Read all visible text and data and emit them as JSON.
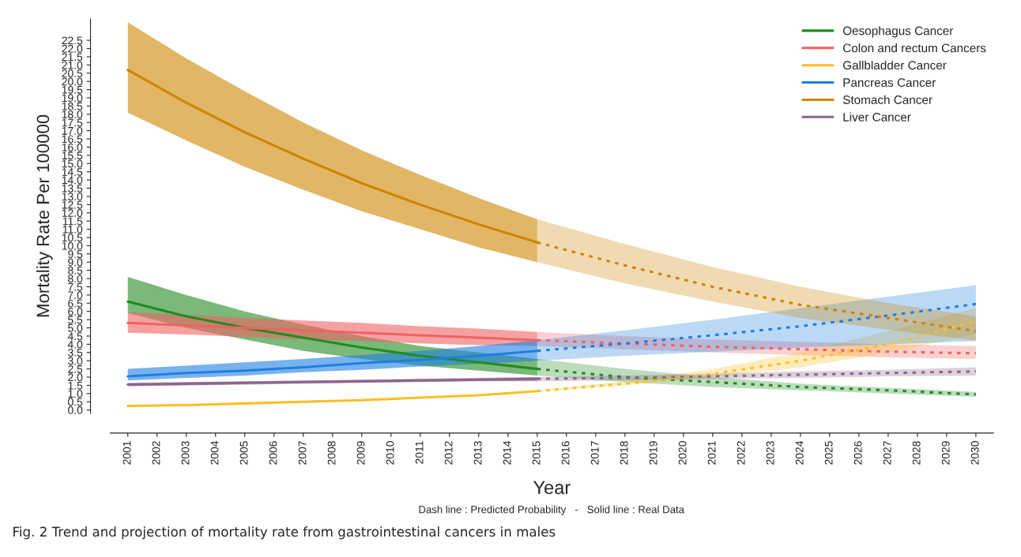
{
  "chart_data": {
    "type": "line",
    "xlabel": "Year",
    "ylabel": "Mortality Rate Per 100000",
    "legend": "top right",
    "annotations": [
      "Dash line : Predicted Probability   -   Solid line : Real Data",
      "Fig. 2 Trend and projection of mortality rate from gastrointestinal cancers in males"
    ],
    "xlim": [
      2000.4,
      2030.6
    ],
    "xticks": [
      2001,
      2002,
      2003,
      2004,
      2005,
      2006,
      2007,
      2008,
      2009,
      2010,
      2011,
      2012,
      2013,
      2014,
      2015,
      2016,
      2017,
      2018,
      2019,
      2020,
      2021,
      2022,
      2023,
      2024,
      2025,
      2026,
      2027,
      2028,
      2029,
      2030
    ],
    "ylim": [
      -0.2,
      23.8
    ],
    "yticks": [
      {
        "value": 0,
        "label": "0.0"
      },
      0.5,
      {
        "value": 1,
        "label": "1.0"
      },
      1.5,
      {
        "value": 2,
        "label": "2.0"
      },
      2.5,
      {
        "value": 3,
        "label": "3.0"
      },
      3.5,
      {
        "value": 4,
        "label": "4.0"
      },
      4.5,
      {
        "value": 5,
        "label": "5.0"
      },
      5.5,
      {
        "value": 6,
        "label": "6.0"
      },
      6.5,
      {
        "value": 7,
        "label": "7.0"
      },
      7.5,
      {
        "value": 8,
        "label": "8.0"
      },
      8.5,
      {
        "value": 9,
        "label": "9.0"
      },
      9.5,
      {
        "value": 10,
        "label": "10.0"
      },
      10.5,
      {
        "value": 11,
        "label": "11.0"
      },
      11.5,
      {
        "value": 12,
        "label": "12.0"
      },
      12.5,
      {
        "value": 13,
        "label": "13.0"
      },
      13.5,
      {
        "value": 14,
        "label": "14.0"
      },
      14.5,
      {
        "value": 15,
        "label": "15.0"
      },
      15.5,
      {
        "value": 16,
        "label": "16.0"
      },
      16.5,
      {
        "value": 17,
        "label": "17.0"
      },
      17.5,
      {
        "value": 18,
        "label": "18.0"
      },
      18.5,
      {
        "value": 19,
        "label": "19.0"
      },
      19.5,
      {
        "value": 20,
        "label": "20.0"
      },
      20.5,
      {
        "value": 21,
        "label": "21.0"
      },
      21.5,
      {
        "value": 22,
        "label": "22.0"
      },
      22.5
    ],
    "series": [
      {
        "name": "Oesophagus Cancer",
        "color": "#228b22",
        "line_style": "solid",
        "x": [
          2001,
          2003,
          2005,
          2007,
          2009,
          2011,
          2013,
          2015
        ],
        "values": [
          6.6,
          5.7,
          5.0,
          4.4,
          3.8,
          3.3,
          2.9,
          2.5
        ],
        "lower": [
          5.9,
          5.0,
          4.3,
          3.6,
          3.1,
          2.7,
          2.4,
          2.1
        ],
        "upper": [
          8.1,
          7.0,
          6.0,
          5.2,
          4.5,
          3.9,
          3.5,
          3.1
        ]
      },
      {
        "name": "Colon and rectum Cancers",
        "color": "#ee6363",
        "line_style": "solid",
        "x": [
          2001,
          2003,
          2005,
          2007,
          2009,
          2011,
          2013,
          2015
        ],
        "values": [
          5.3,
          5.15,
          5.0,
          4.85,
          4.7,
          4.55,
          4.4,
          4.25
        ],
        "lower": [
          4.7,
          4.6,
          4.45,
          4.3,
          4.2,
          4.05,
          3.95,
          3.9
        ],
        "upper": [
          5.95,
          5.8,
          5.6,
          5.45,
          5.3,
          5.1,
          4.95,
          4.75
        ]
      },
      {
        "name": "Gallbladder Cancer",
        "color": "#fbbf24",
        "line_style": "solid",
        "x": [
          2001,
          2003,
          2005,
          2007,
          2009,
          2011,
          2013,
          2015
        ],
        "values": [
          0.25,
          0.3,
          0.4,
          0.5,
          0.6,
          0.75,
          0.9,
          1.15
        ],
        "lower": [
          0.2,
          0.25,
          0.35,
          0.45,
          0.55,
          0.7,
          0.85,
          1.1
        ],
        "upper": [
          0.3,
          0.35,
          0.45,
          0.55,
          0.65,
          0.8,
          0.95,
          1.2
        ]
      },
      {
        "name": "Pancreas Cancer",
        "color": "#1e7fe0",
        "line_style": "solid",
        "x": [
          2001,
          2003,
          2005,
          2007,
          2009,
          2011,
          2013,
          2015
        ],
        "values": [
          2.05,
          2.25,
          2.4,
          2.6,
          2.85,
          3.05,
          3.3,
          3.6
        ],
        "lower": [
          1.8,
          1.95,
          2.1,
          2.3,
          2.45,
          2.65,
          2.8,
          3.0
        ],
        "upper": [
          2.5,
          2.7,
          2.9,
          3.1,
          3.35,
          3.6,
          3.9,
          4.25
        ]
      },
      {
        "name": "Stomach Cancer",
        "color": "#cd8500",
        "line_style": "solid",
        "x": [
          2001,
          2003,
          2005,
          2007,
          2009,
          2011,
          2013,
          2015
        ],
        "values": [
          20.7,
          18.7,
          16.9,
          15.3,
          13.8,
          12.5,
          11.3,
          10.2
        ],
        "lower": [
          18.1,
          16.4,
          14.8,
          13.4,
          12.1,
          11.0,
          9.9,
          9.0
        ],
        "upper": [
          23.6,
          21.4,
          19.4,
          17.5,
          15.8,
          14.3,
          12.9,
          11.6
        ]
      },
      {
        "name": "Liver Cancer",
        "color": "#8b668b",
        "line_style": "solid",
        "x": [
          2001,
          2003,
          2005,
          2007,
          2009,
          2011,
          2013,
          2015
        ],
        "values": [
          1.55,
          1.6,
          1.65,
          1.7,
          1.75,
          1.8,
          1.85,
          1.9
        ],
        "lower": [
          1.45,
          1.5,
          1.55,
          1.6,
          1.65,
          1.7,
          1.75,
          1.75
        ],
        "upper": [
          1.65,
          1.7,
          1.75,
          1.8,
          1.85,
          1.9,
          1.95,
          2.0
        ]
      },
      {
        "color": "#228b22",
        "line_style": "dashed",
        "x": [
          2015,
          2018,
          2021,
          2024,
          2027,
          2030
        ],
        "values": [
          2.5,
          2.0,
          1.7,
          1.4,
          1.2,
          0.95
        ],
        "lower": [
          2.1,
          1.7,
          1.4,
          1.2,
          1.0,
          0.8
        ],
        "upper": [
          3.1,
          2.5,
          2.0,
          1.6,
          1.35,
          1.1
        ]
      },
      {
        "color": "#ee6363",
        "line_style": "dashed",
        "x": [
          2015,
          2018,
          2021,
          2024,
          2027,
          2030
        ],
        "values": [
          4.25,
          4.05,
          3.85,
          3.7,
          3.55,
          3.45
        ],
        "lower": [
          3.9,
          3.7,
          3.5,
          3.35,
          3.2,
          3.1
        ],
        "upper": [
          4.75,
          4.5,
          4.3,
          4.15,
          4.0,
          3.9
        ]
      },
      {
        "color": "#fbbf24",
        "line_style": "dashed",
        "x": [
          2015,
          2018,
          2021,
          2024,
          2027,
          2030
        ],
        "values": [
          1.15,
          1.6,
          2.2,
          3.0,
          4.0,
          5.4
        ],
        "lower": [
          1.1,
          1.5,
          2.0,
          2.6,
          3.5,
          4.6
        ],
        "upper": [
          1.2,
          1.75,
          2.5,
          3.5,
          4.8,
          6.2
        ]
      },
      {
        "color": "#1e7fe0",
        "line_style": "dashed",
        "x": [
          2015,
          2018,
          2021,
          2024,
          2027,
          2030
        ],
        "values": [
          3.6,
          4.05,
          4.55,
          5.1,
          5.75,
          6.45
        ],
        "lower": [
          3.0,
          3.3,
          3.55,
          3.8,
          4.0,
          4.2
        ],
        "upper": [
          4.25,
          4.85,
          5.5,
          6.2,
          6.9,
          7.6
        ]
      },
      {
        "color": "#cd8500",
        "line_style": "dashed",
        "x": [
          2015,
          2018,
          2021,
          2024,
          2027,
          2030
        ],
        "values": [
          10.2,
          8.8,
          7.5,
          6.4,
          5.6,
          4.8
        ],
        "lower": [
          9.0,
          7.7,
          6.6,
          5.6,
          4.9,
          4.2
        ],
        "upper": [
          11.6,
          10.1,
          8.7,
          7.5,
          6.5,
          5.7
        ]
      },
      {
        "color": "#8b668b",
        "line_style": "dashed",
        "x": [
          2015,
          2018,
          2021,
          2024,
          2027,
          2030
        ],
        "values": [
          1.9,
          1.95,
          2.05,
          2.15,
          2.25,
          2.35
        ],
        "lower": [
          1.75,
          1.8,
          1.9,
          1.95,
          2.05,
          2.1
        ],
        "upper": [
          2.0,
          2.1,
          2.2,
          2.35,
          2.45,
          2.6
        ]
      }
    ]
  }
}
